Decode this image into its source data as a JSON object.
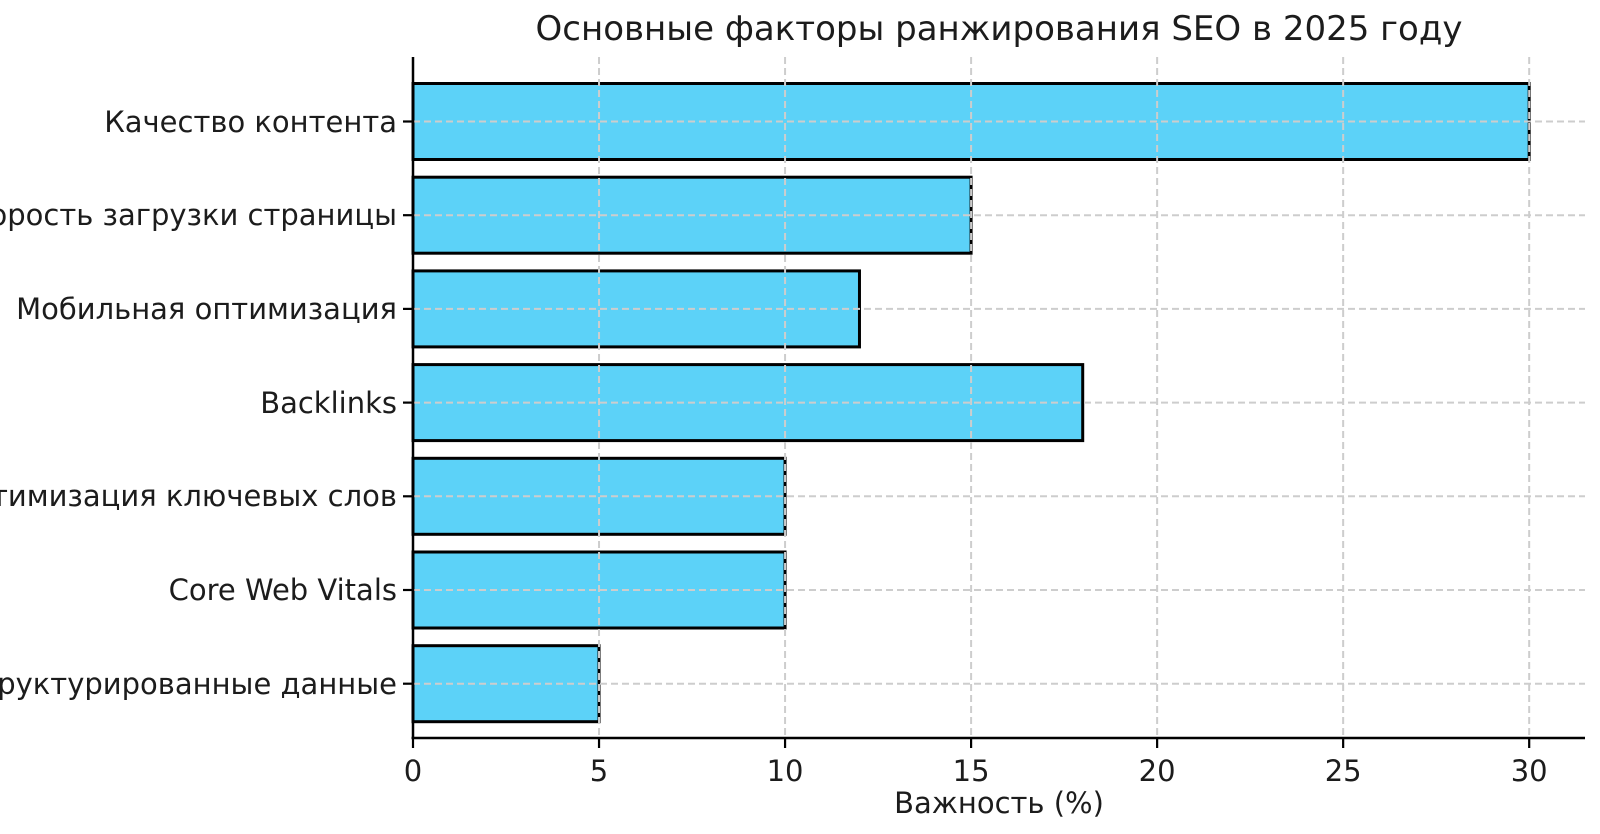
{
  "chart_data": {
    "type": "bar",
    "orientation": "horizontal",
    "title": "Основные факторы ранжирования SEO в 2025 году",
    "xlabel": "Важность (%)",
    "ylabel": "",
    "categories": [
      "Качество контента",
      "Скорость загрузки страницы",
      "Мобильная оптимизация",
      "Backlinks",
      "Оптимизация ключевых слов",
      "Core Web Vitals",
      "Структурированные данные"
    ],
    "values": [
      30,
      15,
      12,
      18,
      10,
      10,
      5
    ],
    "xticks": [
      0,
      5,
      10,
      15,
      20,
      25,
      30
    ],
    "xlim": [
      0,
      31.5
    ],
    "grid": true,
    "grid_style": "dashed",
    "grid_position": "above-bars",
    "legend": "none",
    "colors": {
      "bar_fill": "#5CD2F8",
      "bar_edge": "#000000",
      "grid": "#cdcdcd",
      "axis": "#000000",
      "text": "#1c1c1c",
      "background": "#ffffff"
    }
  }
}
